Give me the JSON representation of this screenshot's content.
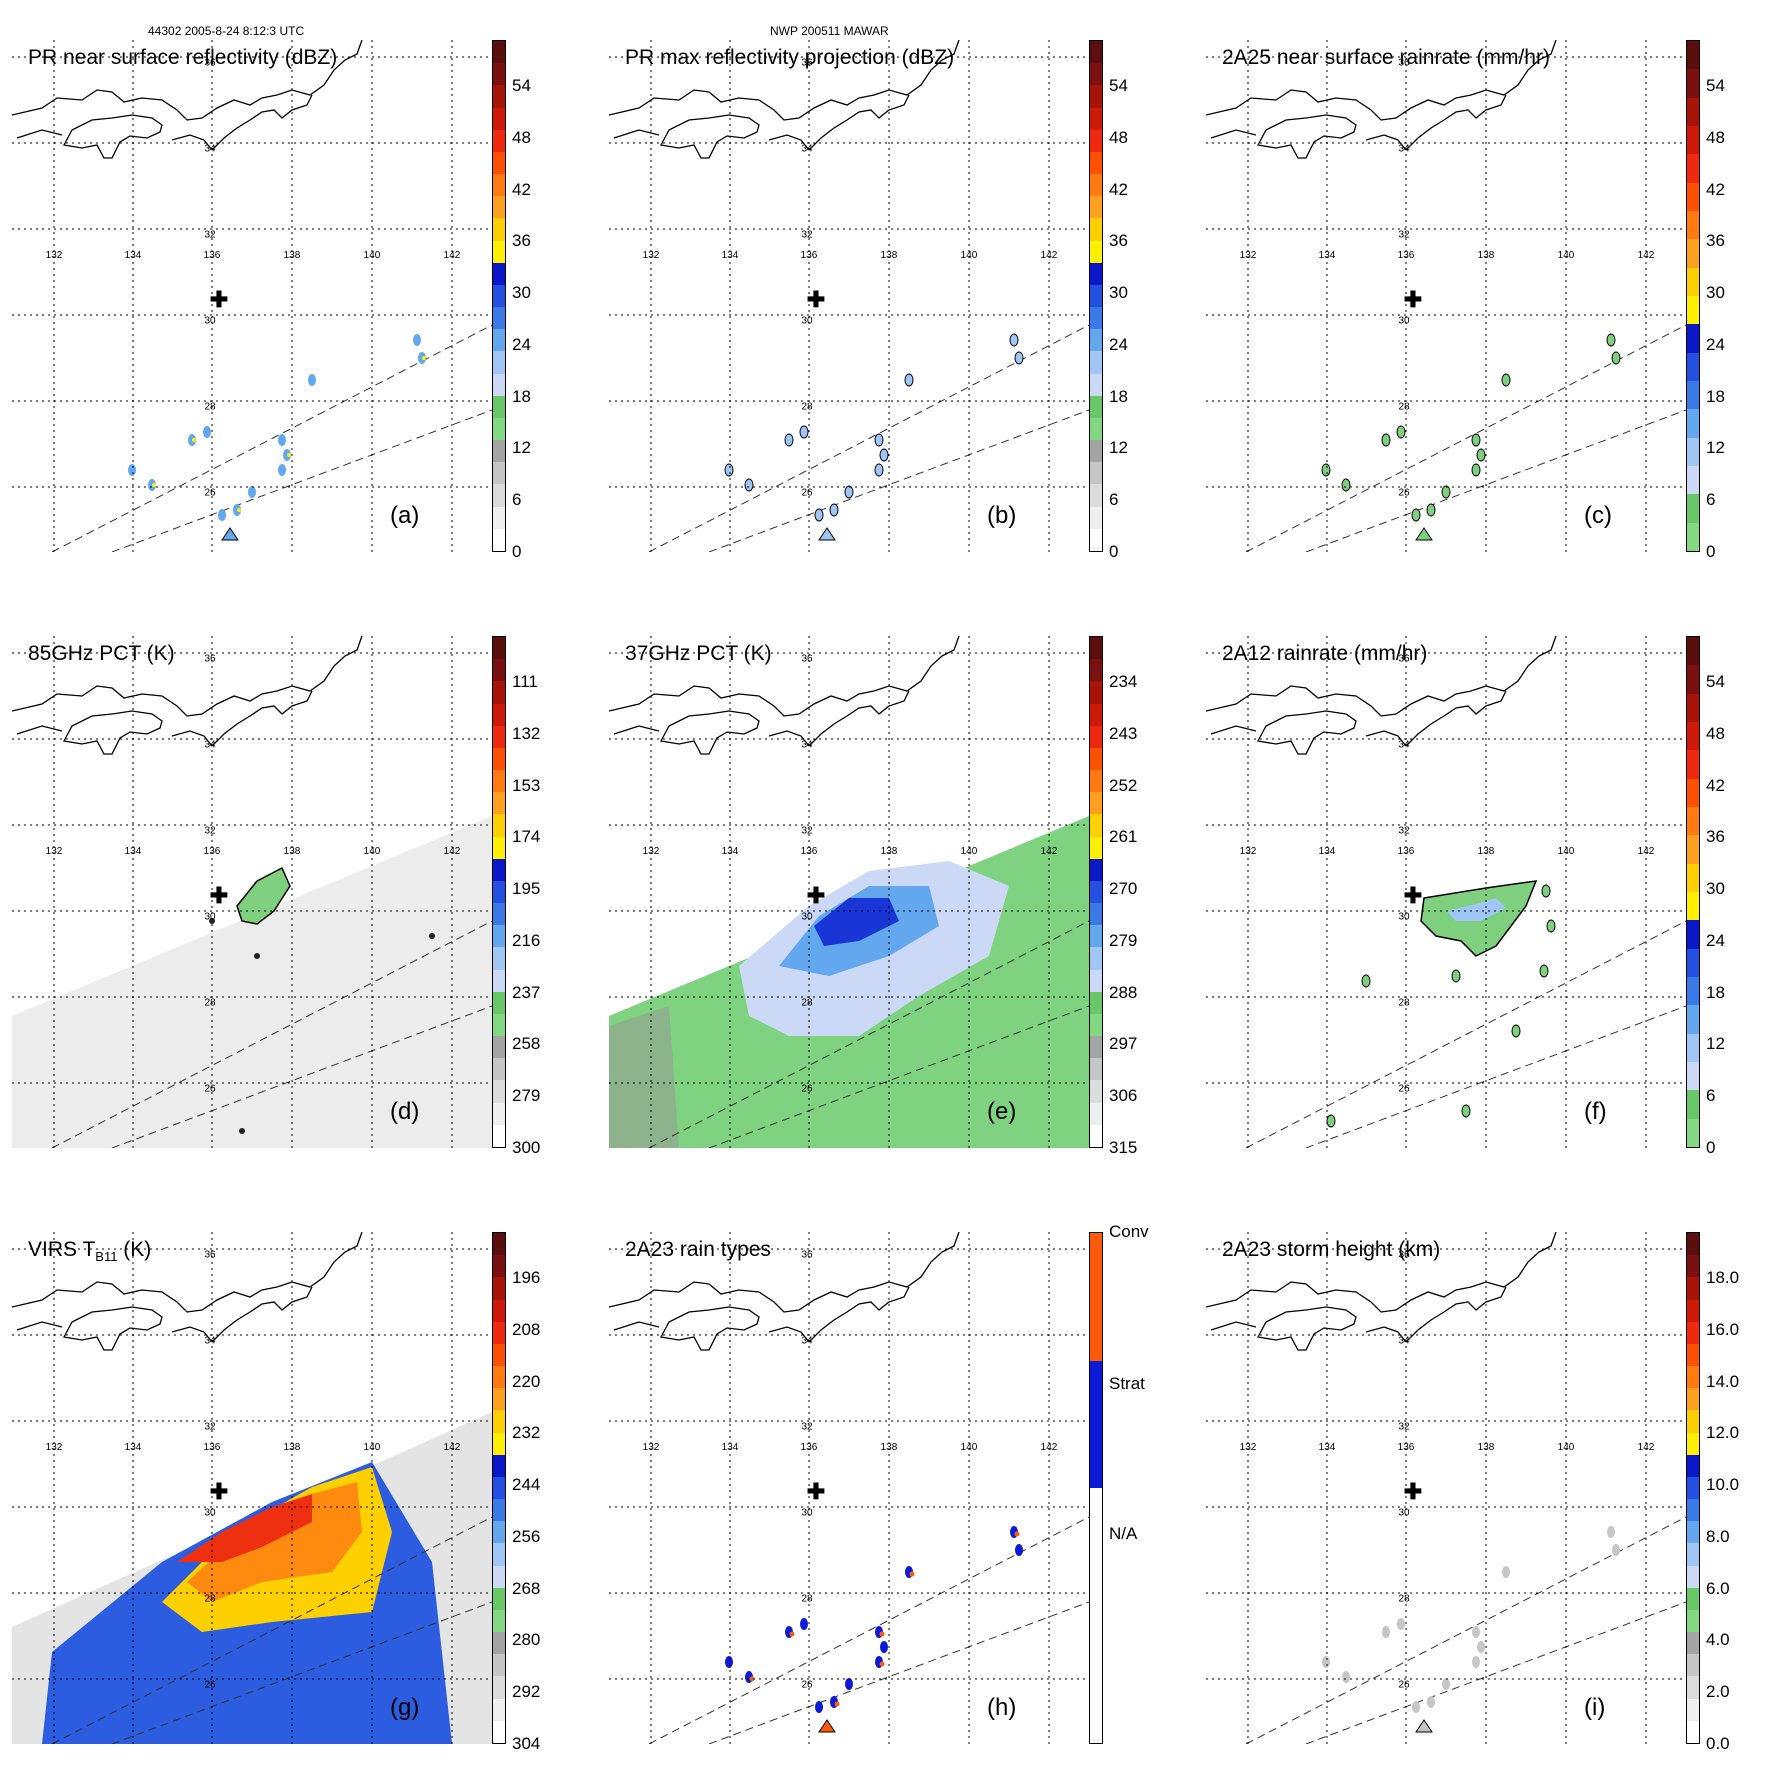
{
  "header": {
    "orbit_info": "44302 2005-8-24 8:12:3 UTC",
    "storm_name": "NWP 200511 MAWAR"
  },
  "lon_labels": [
    "132",
    "134",
    "136",
    "138",
    "140",
    "142"
  ],
  "lat_labels": [
    "36",
    "34",
    "32",
    "30",
    "28",
    "26"
  ],
  "colors": {
    "greys": [
      "#ffffff",
      "#efefef",
      "#dcdcdc",
      "#c6c6c6",
      "#a4a4a4"
    ],
    "greens": [
      "#82d982",
      "#68c868"
    ],
    "blues": [
      "#cbd9f6",
      "#9fc6f5",
      "#63a7ef",
      "#3a7ae7",
      "#2350e0",
      "#0a18c9"
    ],
    "yellow": "#fff000",
    "oranges": [
      "#ffd000",
      "#ffa020",
      "#ff7a10",
      "#ff5000"
    ],
    "reds": [
      "#ef2810",
      "#cf1a0a",
      "#a81408",
      "#7a1010",
      "#5a0e0e"
    ],
    "conv": "#ff5a0a",
    "strat": "#0a1ad6"
  },
  "panels": [
    {
      "title": "PR near surface reflectivity (dBZ)",
      "label": "(a)",
      "ticks": [
        "54",
        "48",
        "42",
        "36",
        "30",
        "24",
        "18",
        "12",
        "6",
        "0"
      ],
      "bar": "dbz",
      "swath": "narrow",
      "precip": "pr"
    },
    {
      "title": "PR max reflectivity projection (dBZ)",
      "label": "(b)",
      "ticks": [
        "54",
        "48",
        "42",
        "36",
        "30",
        "24",
        "18",
        "12",
        "6",
        "0"
      ],
      "bar": "dbz",
      "swath": "narrow",
      "precip": "prmax"
    },
    {
      "title": "2A25 near surface rainrate (mm/hr)",
      "label": "(c)",
      "ticks": [
        "54",
        "48",
        "42",
        "36",
        "30",
        "24",
        "18",
        "12",
        "6",
        "0"
      ],
      "bar": "rain",
      "swath": "narrow",
      "precip": "rain25"
    },
    {
      "title": "85GHz PCT (K)",
      "label": "(d)",
      "ticks": [
        "111",
        "132",
        "153",
        "174",
        "195",
        "216",
        "237",
        "258",
        "279",
        "300"
      ],
      "bar": "dbz",
      "swath": "wide",
      "precip": "pct85"
    },
    {
      "title": "37GHz PCT (K)",
      "label": "(e)",
      "ticks": [
        "234",
        "243",
        "252",
        "261",
        "270",
        "279",
        "288",
        "297",
        "306",
        "315"
      ],
      "bar": "dbz",
      "swath": "wide",
      "precip": "pct37"
    },
    {
      "title": "2A12 rainrate (mm/hr)",
      "label": "(f)",
      "ticks": [
        "54",
        "48",
        "42",
        "36",
        "30",
        "24",
        "18",
        "12",
        "6",
        "0"
      ],
      "bar": "rain",
      "swath": "narrow",
      "precip": "rain12"
    },
    {
      "title": "VIRS T",
      "title_sub": "B11",
      "title_unit": " (K)",
      "label": "(g)",
      "ticks": [
        "196",
        "208",
        "220",
        "232",
        "244",
        "256",
        "268",
        "280",
        "292",
        "304"
      ],
      "bar": "dbz",
      "swath": "wide",
      "precip": "virs"
    },
    {
      "title": "2A23 rain types",
      "label": "(h)",
      "ticks": [
        "Conv",
        "Strat",
        "N/A"
      ],
      "bar": "types",
      "swath": "narrow",
      "precip": "types"
    },
    {
      "title": "2A23 storm height (km)",
      "label": "(i)",
      "ticks": [
        "18.0",
        "16.0",
        "14.0",
        "12.0",
        "10.0",
        "8.0",
        "6.0",
        "4.0",
        "2.0",
        "0.0"
      ],
      "bar": "height",
      "swath": "narrow",
      "precip": "height"
    }
  ]
}
